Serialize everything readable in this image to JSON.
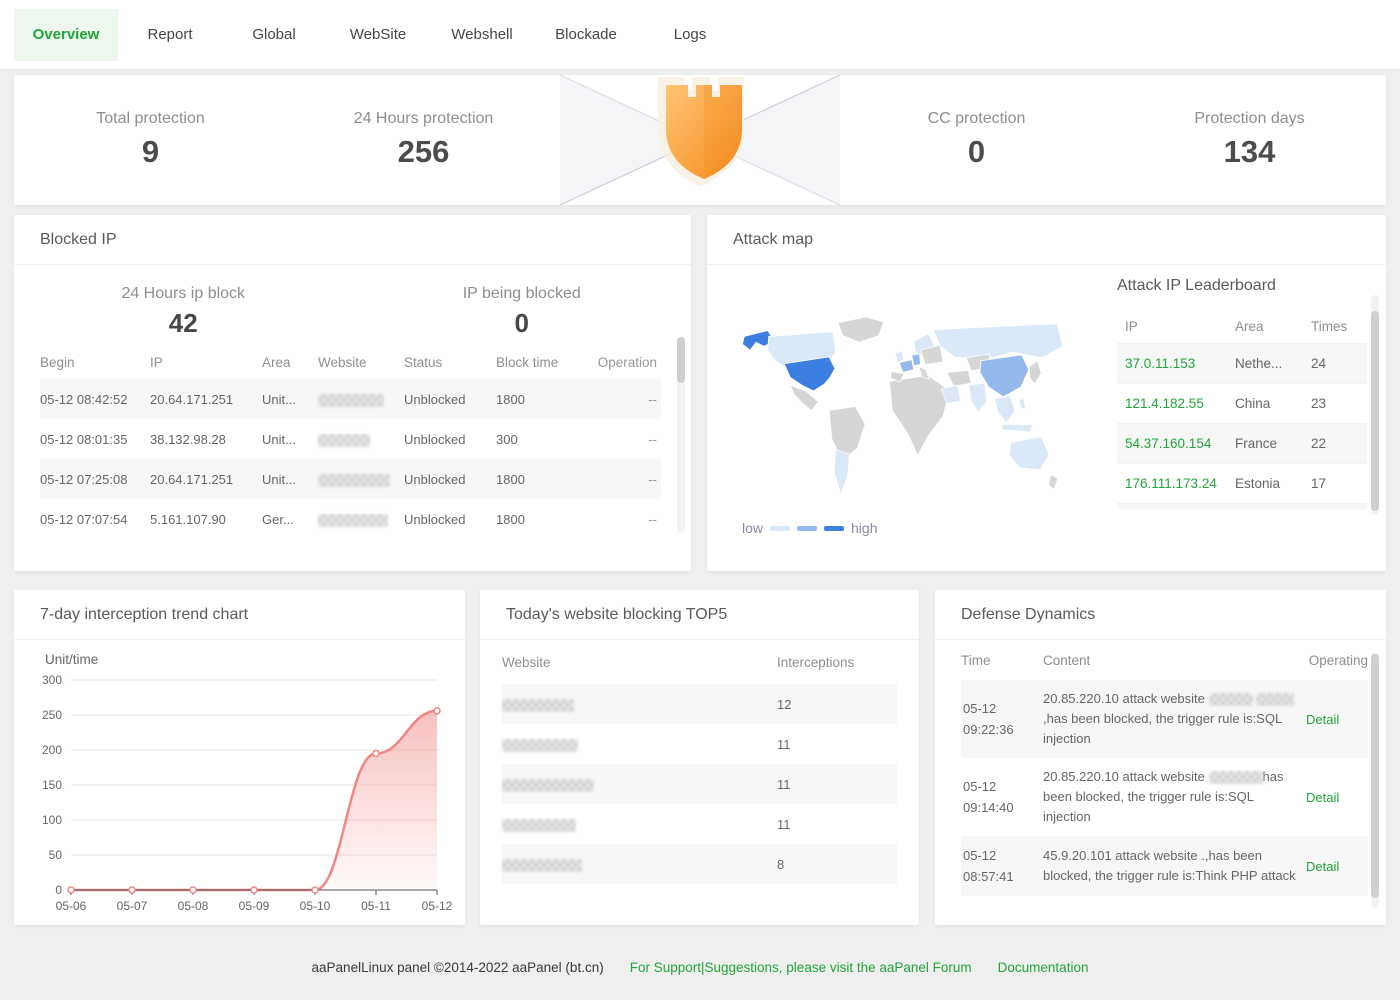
{
  "tabs": [
    {
      "label": "Overview",
      "active": true
    },
    {
      "label": "Report",
      "active": false
    },
    {
      "label": "Global",
      "active": false
    },
    {
      "label": "WebSite",
      "active": false
    },
    {
      "label": "Webshell",
      "active": false
    },
    {
      "label": "Blockade",
      "active": false
    },
    {
      "label": "Logs",
      "active": false
    }
  ],
  "stats": {
    "total_protection": {
      "label": "Total protection",
      "value": "9"
    },
    "hours24_protection": {
      "label": "24 Hours protection",
      "value": "256"
    },
    "cc_protection": {
      "label": "CC protection",
      "value": "0"
    },
    "protection_days": {
      "label": "Protection days",
      "value": "134"
    }
  },
  "blocked_ip": {
    "title": "Blocked IP",
    "stat_left": {
      "label": "24 Hours ip block",
      "value": "42"
    },
    "stat_right": {
      "label": "IP being blocked",
      "value": "0"
    },
    "columns": {
      "begin": "Begin",
      "ip": "IP",
      "area": "Area",
      "website": "Website",
      "status": "Status",
      "block_time": "Block time",
      "operation": "Operation"
    },
    "rows": [
      {
        "begin": "05-12 08:42:52",
        "ip": "20.64.171.251",
        "area": "Unit...",
        "status": "Unblocked",
        "block_time": "1800",
        "operation": "--"
      },
      {
        "begin": "05-12 08:01:35",
        "ip": "38.132.98.28",
        "area": "Unit...",
        "status": "Unblocked",
        "block_time": "300",
        "operation": "--"
      },
      {
        "begin": "05-12 07:25:08",
        "ip": "20.64.171.251",
        "area": "Unit...",
        "status": "Unblocked",
        "block_time": "1800",
        "operation": "--"
      },
      {
        "begin": "05-12 07:07:54",
        "ip": "5.161.107.90",
        "area": "Ger...",
        "status": "Unblocked",
        "block_time": "1800",
        "operation": "--"
      }
    ]
  },
  "attack_map": {
    "title": "Attack map",
    "legend": {
      "low": "low",
      "high": "high"
    },
    "leaderboard": {
      "title": "Attack IP Leaderboard",
      "columns": {
        "ip": "IP",
        "area": "Area",
        "times": "Times"
      },
      "rows": [
        {
          "ip": "37.0.11.153",
          "area": "Nethe...",
          "times": "24"
        },
        {
          "ip": "121.4.182.55",
          "area": "China",
          "times": "23"
        },
        {
          "ip": "54.37.160.154",
          "area": "France",
          "times": "22"
        },
        {
          "ip": "176.111.173.24",
          "area": "Estonia",
          "times": "17"
        }
      ]
    }
  },
  "trend_panel": {
    "title": "7-day interception trend chart"
  },
  "chart_data": [
    {
      "type": "area",
      "title": "7-day interception trend chart",
      "x": [
        "05-06",
        "05-07",
        "05-08",
        "05-09",
        "05-10",
        "05-11",
        "05-12"
      ],
      "series": [
        {
          "name": "interceptions",
          "values": [
            0,
            0,
            0,
            0,
            0,
            195,
            256
          ]
        }
      ],
      "xlabel": "",
      "ylabel": "Unit/time",
      "ylim": [
        0,
        300
      ],
      "yticks": [
        0,
        50,
        100,
        150,
        200,
        250,
        300
      ],
      "grid": true,
      "legend_position": "none",
      "line_color": "#f28482"
    },
    {
      "type": "heatmap",
      "title": "Attack map",
      "legend": [
        "low",
        "high"
      ],
      "regions": [
        {
          "name": "United States",
          "level": "high"
        },
        {
          "name": "Alaska (US)",
          "level": "high"
        },
        {
          "name": "China",
          "level": "mid"
        },
        {
          "name": "France",
          "level": "mid"
        },
        {
          "name": "Germany",
          "level": "mid"
        },
        {
          "name": "Canada",
          "level": "low"
        },
        {
          "name": "Russia",
          "level": "low"
        },
        {
          "name": "Scandinavia",
          "level": "low"
        },
        {
          "name": "United Kingdom",
          "level": "low"
        },
        {
          "name": "Saudi Arabia",
          "level": "low"
        },
        {
          "name": "India",
          "level": "low"
        },
        {
          "name": "Southeast Asia",
          "level": "low"
        },
        {
          "name": "Indonesia",
          "level": "low"
        },
        {
          "name": "Australia",
          "level": "low"
        },
        {
          "name": "Argentina",
          "level": "low"
        }
      ]
    }
  ],
  "top5": {
    "title": "Today's website blocking TOP5",
    "columns": {
      "website": "Website",
      "interceptions": "Interceptions"
    },
    "rows": [
      {
        "interceptions": "12"
      },
      {
        "interceptions": "11"
      },
      {
        "interceptions": "11"
      },
      {
        "interceptions": "11"
      },
      {
        "interceptions": "8"
      }
    ]
  },
  "defense": {
    "title": "Defense Dynamics",
    "columns": {
      "time": "Time",
      "content": "Content",
      "operating": "Operating"
    },
    "rows": [
      {
        "date": "05-12",
        "time": "09:22:36",
        "content_prefix": "20.85.220.10 attack website",
        "content_suffix": ",has been blocked, the trigger rule is:SQL injection",
        "action": "Detail"
      },
      {
        "date": "05-12",
        "time": "09:14:40",
        "content_prefix": "20.85.220.10 attack website",
        "content_suffix": "has been blocked, the trigger rule is:SQL injection",
        "action": "Detail"
      },
      {
        "date": "05-12",
        "time": "08:57:41",
        "content_prefix": "45.9.20.101 attack website .,has been blocked, the trigger rule is:Think PHP attack",
        "content_suffix": "",
        "action": "Detail"
      }
    ]
  },
  "footer": {
    "copyright": "aaPanelLinux panel ©2014-2022 aaPanel (bt.cn)",
    "support_link": "For Support|Suggestions, please visit the aaPanel Forum",
    "docs_link": "Documentation"
  },
  "colors": {
    "accent_green": "#20a53a",
    "tab_active_bg": "#eef7ee",
    "chart_line": "#f28482",
    "map_high": "#3d7fe0",
    "map_mid": "#93b9ed",
    "map_low": "#dbe8f8",
    "map_none": "#d6d6d6",
    "shield_orange": "#f79b30"
  }
}
